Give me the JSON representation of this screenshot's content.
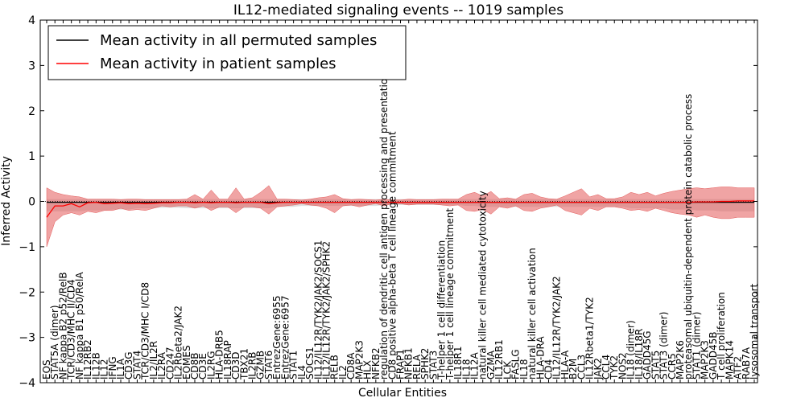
{
  "chart_data": {
    "type": "line",
    "title": "IL12-mediated signaling events -- 1019 samples",
    "xlabel": "Cellular Entities",
    "ylabel": "Inferred Activity",
    "ylim": [
      -4,
      4
    ],
    "yticks": [
      -4,
      -3,
      -2,
      -1,
      0,
      1,
      2,
      3,
      4
    ],
    "grid": false,
    "legend_position": "top-left",
    "categories": [
      "EOS",
      "STAT5A (dimer)",
      "NF kappa B2 p52/RelB",
      "TCR/CD3/MHC II/CD4",
      "NF kappa B1 p50/RelA",
      "IL12RB2",
      "IL12B",
      "IL12",
      "IFNG",
      "IL1A",
      "CD3G",
      "STAT4",
      "TCR/CD3/MHC I/CD8",
      "IL2/IL2R",
      "IL2RA",
      "CD247",
      "IL2Rbeta2/JAK2",
      "EOMES",
      "CD8B",
      "CD3E",
      "IL2RG",
      "HLA-DRB5",
      "IL18RAP",
      "CD3D",
      "TBX21",
      "IL2RB",
      "GZMB",
      "STAT6",
      "EntrezGene:6955",
      "EntrezGene:6957",
      "STAT1",
      "IL4",
      "SOCS1",
      "IL12/IL12R/TYK2/JAK2/SOCS1",
      "IL12/IL12R/TYK2/JAK2/SPHK2",
      "RELB",
      "IL2",
      "CD8A",
      "MAP2K3",
      "HLX",
      "NFKB2",
      "regulation of dendritic cell antigen processing and presentation",
      "CD8 positive alpha-beta T cell lineage commitment",
      "FRAP1",
      "NFKB1",
      "RELA",
      "SPHK2",
      "STAT3",
      "T-helper 1 cell differentiation",
      "T-helper 1 cell lineage commitment",
      "IL18R1",
      "IL18",
      "IL12A",
      "natural killer cell mediated cytotoxicity",
      "GZMA",
      "IL12RB1",
      "LCK",
      "FASLG",
      "IL18",
      "natural killer cell activation",
      "HLA-DRA",
      "CD4",
      "IL12/IL12R/TYK2/JAK2",
      "HLA-A",
      "B2M",
      "CCL3",
      "IL12Rbeta1/TYK2",
      "JAK2",
      "CCL4",
      "TYK2",
      "NOS2",
      "IL18 (dimer)",
      "IL18/IL18R",
      "GADD45G",
      "STAT5",
      "STAT3 (dimer)",
      "CCR5",
      "MAP2K6",
      "proteasomal ubiquitin-dependent protein catabolic process",
      "STAT1 (dimer)",
      "MAP2K3",
      "GADD45B",
      "T cell proliferation",
      "MAPK14",
      "ATF2",
      "RAB7A",
      "lysosomal transport"
    ],
    "series": [
      {
        "name": "Mean activity in all permuted samples",
        "color": "#000000",
        "values": [
          -0.02,
          -0.02,
          -0.02,
          -0.02,
          -0.02,
          -0.02,
          -0.02,
          -0.02,
          -0.02,
          -0.02,
          -0.02,
          -0.02,
          -0.02,
          -0.02,
          -0.02,
          -0.02,
          -0.02,
          -0.02,
          -0.02,
          -0.02,
          -0.02,
          -0.02,
          -0.02,
          -0.02,
          -0.02,
          -0.02,
          -0.02,
          -0.02,
          -0.02,
          -0.02,
          -0.02,
          -0.02,
          -0.02,
          -0.02,
          -0.02,
          -0.02,
          -0.02,
          -0.02,
          -0.02,
          -0.02,
          -0.02,
          -0.02,
          -0.02,
          -0.02,
          -0.02,
          -0.02,
          -0.02,
          -0.02,
          -0.02,
          -0.02,
          -0.02,
          -0.02,
          -0.02,
          -0.02,
          -0.02,
          -0.02,
          -0.02,
          -0.02,
          -0.02,
          -0.02,
          -0.02,
          -0.02,
          -0.02,
          -0.02,
          -0.02,
          -0.02,
          -0.02,
          -0.02,
          -0.02,
          -0.02,
          -0.02,
          -0.02,
          -0.02,
          -0.02,
          -0.02,
          -0.02,
          -0.02,
          -0.02,
          -0.02,
          -0.02,
          -0.02,
          -0.02,
          -0.02,
          -0.02,
          -0.02,
          -0.02,
          -0.02
        ],
        "lower": [
          -0.22,
          -0.22,
          -0.22,
          -0.22,
          -0.22,
          -0.2,
          -0.2,
          -0.2,
          -0.18,
          -0.18,
          -0.18,
          -0.15,
          -0.15,
          -0.15,
          -0.14,
          -0.14,
          -0.14,
          -0.15,
          -0.15,
          -0.15,
          -0.15,
          -0.15,
          -0.15,
          -0.15,
          -0.15,
          -0.15,
          -0.15,
          -0.15,
          -0.12,
          -0.12,
          -0.12,
          -0.1,
          -0.1,
          -0.1,
          -0.1,
          -0.1,
          -0.1,
          -0.1,
          -0.1,
          -0.1,
          -0.1,
          -0.08,
          -0.08,
          -0.08,
          -0.08,
          -0.08,
          -0.08,
          -0.08,
          -0.08,
          -0.08,
          -0.08,
          -0.1,
          -0.1,
          -0.12,
          -0.12,
          -0.12,
          -0.12,
          -0.12,
          -0.12,
          -0.12,
          -0.12,
          -0.12,
          -0.12,
          -0.12,
          -0.12,
          -0.12,
          -0.12,
          -0.12,
          -0.12,
          -0.12,
          -0.12,
          -0.15,
          -0.15,
          -0.15,
          -0.15,
          -0.15,
          -0.18,
          -0.18,
          -0.18,
          -0.2,
          -0.2,
          -0.2,
          -0.22,
          -0.22,
          -0.22,
          -0.22,
          -0.22
        ],
        "upper": [
          0.05,
          0.05,
          0.05,
          0.05,
          0.05,
          0.05,
          0.05,
          0.05,
          0.05,
          0.05,
          0.05,
          0.05,
          0.05,
          0.05,
          0.05,
          0.05,
          0.05,
          0.05,
          0.05,
          0.05,
          0.05,
          0.05,
          0.05,
          0.05,
          0.05,
          0.05,
          0.05,
          0.05,
          0.05,
          0.05,
          0.05,
          0.05,
          0.05,
          0.05,
          0.05,
          0.05,
          0.05,
          0.05,
          0.05,
          0.05,
          0.05,
          0.05,
          0.05,
          0.05,
          0.05,
          0.05,
          0.05,
          0.05,
          0.05,
          0.05,
          0.05,
          0.05,
          0.05,
          0.05,
          0.05,
          0.05,
          0.05,
          0.05,
          0.05,
          0.05,
          0.05,
          0.05,
          0.05,
          0.05,
          0.05,
          0.05,
          0.05,
          0.05,
          0.05,
          0.05,
          0.05,
          0.05,
          0.05,
          0.05,
          0.05,
          0.05,
          0.05,
          0.05,
          0.05,
          0.05,
          0.05,
          0.05,
          0.05,
          0.05,
          0.05,
          0.05,
          0.05
        ]
      },
      {
        "name": "Mean activity in patient samples",
        "color": "#ff0000",
        "values": [
          -0.35,
          -0.1,
          -0.1,
          -0.05,
          -0.12,
          -0.03,
          -0.02,
          -0.05,
          -0.04,
          -0.03,
          -0.05,
          -0.04,
          -0.05,
          -0.04,
          -0.03,
          -0.03,
          -0.02,
          -0.02,
          -0.03,
          -0.02,
          -0.03,
          -0.02,
          -0.02,
          -0.03,
          -0.02,
          -0.02,
          -0.02,
          -0.05,
          -0.03,
          -0.02,
          -0.02,
          -0.02,
          -0.02,
          -0.02,
          -0.02,
          -0.02,
          -0.02,
          -0.02,
          -0.02,
          -0.02,
          -0.02,
          -0.02,
          -0.02,
          -0.02,
          -0.02,
          -0.02,
          -0.02,
          -0.02,
          -0.02,
          -0.02,
          -0.02,
          -0.02,
          -0.02,
          -0.02,
          -0.02,
          -0.02,
          -0.02,
          -0.02,
          -0.02,
          -0.02,
          -0.02,
          -0.02,
          -0.02,
          -0.02,
          -0.02,
          -0.02,
          -0.02,
          -0.02,
          -0.02,
          -0.02,
          -0.02,
          -0.02,
          -0.02,
          -0.02,
          -0.02,
          -0.02,
          -0.02,
          -0.02,
          -0.02,
          -0.01,
          -0.01,
          -0.01,
          0.0,
          0.0,
          0.01,
          0.01,
          0.01
        ],
        "lower": [
          -1.0,
          -0.45,
          -0.3,
          -0.25,
          -0.3,
          -0.22,
          -0.25,
          -0.2,
          -0.2,
          -0.15,
          -0.2,
          -0.18,
          -0.2,
          -0.15,
          -0.1,
          -0.12,
          -0.1,
          -0.1,
          -0.15,
          -0.1,
          -0.2,
          -0.12,
          -0.12,
          -0.25,
          -0.12,
          -0.12,
          -0.15,
          -0.28,
          -0.12,
          -0.1,
          -0.08,
          -0.05,
          -0.08,
          -0.1,
          -0.15,
          -0.25,
          -0.1,
          -0.08,
          -0.12,
          -0.08,
          -0.05,
          -0.1,
          -0.05,
          -0.05,
          -0.08,
          -0.06,
          -0.06,
          -0.06,
          -0.08,
          -0.1,
          -0.08,
          -0.2,
          -0.22,
          -0.18,
          -0.28,
          -0.12,
          -0.15,
          -0.1,
          -0.2,
          -0.22,
          -0.15,
          -0.12,
          -0.08,
          -0.2,
          -0.25,
          -0.3,
          -0.15,
          -0.2,
          -0.12,
          -0.12,
          -0.15,
          -0.2,
          -0.18,
          -0.22,
          -0.15,
          -0.2,
          -0.25,
          -0.28,
          -0.3,
          -0.35,
          -0.3,
          -0.35,
          -0.38,
          -0.38,
          -0.35,
          -0.35,
          -0.35
        ],
        "upper": [
          0.3,
          0.2,
          0.15,
          0.12,
          0.1,
          0.05,
          0.05,
          0.05,
          0.05,
          0.04,
          0.05,
          0.05,
          0.04,
          0.04,
          0.04,
          0.04,
          0.04,
          0.05,
          0.15,
          0.05,
          0.25,
          0.05,
          0.05,
          0.3,
          0.05,
          0.08,
          0.2,
          0.35,
          0.05,
          0.05,
          0.04,
          0.03,
          0.05,
          0.08,
          0.1,
          0.15,
          0.06,
          0.04,
          0.05,
          0.04,
          0.03,
          0.05,
          0.03,
          0.03,
          0.05,
          0.04,
          0.04,
          0.04,
          0.05,
          0.05,
          0.05,
          0.15,
          0.2,
          0.12,
          0.22,
          0.06,
          0.08,
          0.05,
          0.15,
          0.18,
          0.1,
          0.06,
          0.05,
          0.12,
          0.2,
          0.28,
          0.1,
          0.15,
          0.06,
          0.06,
          0.1,
          0.2,
          0.15,
          0.2,
          0.12,
          0.18,
          0.22,
          0.25,
          0.28,
          0.3,
          0.28,
          0.3,
          0.32,
          0.32,
          0.3,
          0.3,
          0.3
        ]
      }
    ]
  }
}
